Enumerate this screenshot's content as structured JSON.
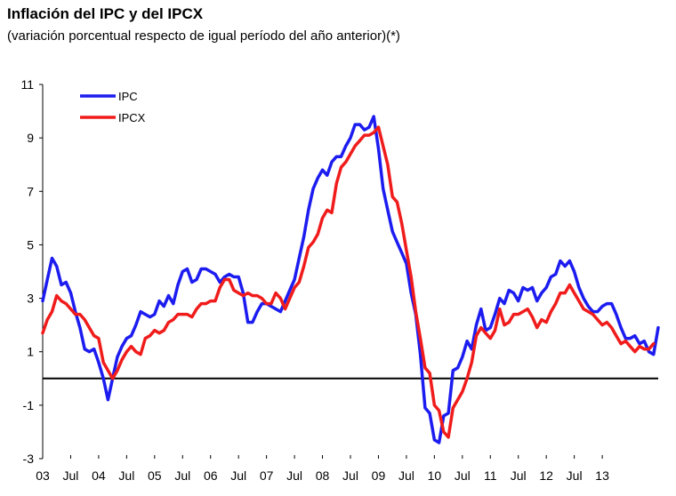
{
  "header": {
    "title": "Inflación del IPC y del IPCX",
    "subtitle": "(variación porcentual respecto de igual período del año anterior)(*)"
  },
  "chart_data": {
    "type": "line",
    "title": "Inflación del IPC y del IPCX",
    "subtitle": "(variación porcentual respecto de igual período del año anterior)(*)",
    "xlabel": "",
    "ylabel": "",
    "ylim": [
      -3,
      11
    ],
    "yticks": [
      "11",
      "9",
      "7",
      "5",
      "3",
      "1",
      "-1",
      "-3"
    ],
    "xticks": [
      "03",
      "Jul",
      "04",
      "Jul",
      "05",
      "Jul",
      "06",
      "Jul",
      "07",
      "Jul",
      "08",
      "Jul",
      "09",
      "Jul",
      "10",
      "Jul",
      "11",
      "Jul",
      "12",
      "Jul",
      "13"
    ],
    "legend_position": "top-left",
    "reference_line": 0,
    "x_start": "2003-01",
    "series": [
      {
        "name": "IPC",
        "color": "#1c1cf0",
        "values": [
          2.9,
          3.7,
          4.5,
          4.2,
          3.5,
          3.6,
          3.2,
          2.5,
          1.9,
          1.1,
          1.0,
          1.1,
          0.6,
          0.0,
          -0.8,
          0.0,
          0.8,
          1.2,
          1.5,
          1.6,
          2.0,
          2.5,
          2.4,
          2.3,
          2.4,
          2.9,
          2.7,
          3.1,
          2.8,
          3.5,
          4.0,
          4.1,
          3.6,
          3.7,
          4.1,
          4.1,
          4.0,
          3.9,
          3.6,
          3.8,
          3.9,
          3.8,
          3.8,
          3.2,
          2.1,
          2.1,
          2.5,
          2.8,
          2.8,
          2.7,
          2.6,
          2.5,
          2.9,
          3.3,
          3.7,
          4.5,
          5.3,
          6.3,
          7.1,
          7.5,
          7.8,
          7.6,
          8.1,
          8.3,
          8.3,
          8.7,
          9.0,
          9.5,
          9.5,
          9.3,
          9.4,
          9.8,
          8.6,
          7.1,
          6.3,
          5.5,
          5.1,
          4.7,
          4.3,
          3.2,
          2.4,
          0.9,
          -1.1,
          -1.3,
          -2.3,
          -2.4,
          -1.4,
          -1.3,
          0.3,
          0.4,
          0.8,
          1.4,
          1.1,
          2.0,
          2.6,
          1.8,
          1.9,
          2.4,
          3.0,
          2.8,
          3.3,
          3.2,
          2.9,
          3.4,
          3.3,
          3.4,
          2.9,
          3.2,
          3.4,
          3.8,
          3.9,
          4.4,
          4.2,
          4.4,
          4.0,
          3.4,
          3.0,
          2.7,
          2.5,
          2.5,
          2.7,
          2.8,
          2.8,
          2.4,
          1.9,
          1.5,
          1.5,
          1.6,
          1.3,
          1.4,
          1.0,
          0.9,
          1.9
        ]
      },
      {
        "name": "IPCX",
        "color": "#f01c1c",
        "values": [
          1.7,
          2.2,
          2.5,
          3.1,
          2.9,
          2.8,
          2.6,
          2.4,
          2.4,
          2.2,
          1.9,
          1.6,
          1.5,
          0.6,
          0.3,
          0.0,
          0.3,
          0.7,
          1.0,
          1.2,
          1.0,
          0.9,
          1.5,
          1.6,
          1.8,
          1.7,
          1.8,
          2.1,
          2.2,
          2.4,
          2.4,
          2.4,
          2.3,
          2.6,
          2.8,
          2.8,
          2.9,
          2.9,
          3.4,
          3.7,
          3.7,
          3.3,
          3.2,
          3.1,
          3.2,
          3.1,
          3.1,
          3.0,
          2.8,
          2.8,
          3.2,
          3.0,
          2.6,
          3.0,
          3.4,
          3.6,
          4.2,
          4.9,
          5.1,
          5.4,
          6.0,
          6.3,
          6.2,
          7.3,
          7.9,
          8.1,
          8.4,
          8.7,
          8.9,
          9.1,
          9.1,
          9.2,
          9.4,
          8.7,
          8.0,
          6.8,
          6.6,
          5.8,
          4.8,
          3.8,
          2.5,
          1.5,
          0.4,
          0.2,
          -1.0,
          -1.2,
          -2.0,
          -2.2,
          -1.1,
          -0.8,
          -0.5,
          0.0,
          0.6,
          1.6,
          1.9,
          1.7,
          1.5,
          1.8,
          2.6,
          2.0,
          2.1,
          2.4,
          2.4,
          2.5,
          2.6,
          2.3,
          1.9,
          2.2,
          2.1,
          2.5,
          2.8,
          3.2,
          3.2,
          3.5,
          3.2,
          2.9,
          2.6,
          2.5,
          2.4,
          2.2,
          2.0,
          2.1,
          1.9,
          1.6,
          1.3,
          1.4,
          1.2,
          1.0,
          1.2,
          1.1,
          1.1,
          1.3
        ]
      }
    ]
  }
}
